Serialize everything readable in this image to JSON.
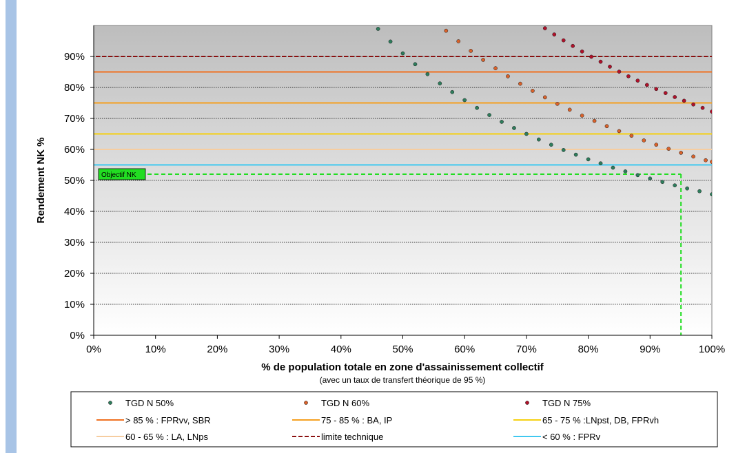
{
  "chart_data": {
    "type": "scatter",
    "xlabel": "% de population totale en zone d'assainissement collectif",
    "xlabel_note": "(avec un taux de transfert théorique de 95 %)",
    "ylabel": "Rendement NK %",
    "xlim": [
      0,
      100
    ],
    "ylim": [
      0,
      100
    ],
    "x_ticks": [
      "0%",
      "10%",
      "20%",
      "30%",
      "40%",
      "50%",
      "60%",
      "70%",
      "80%",
      "90%",
      "100%"
    ],
    "y_ticks": [
      "0%",
      "10%",
      "20%",
      "30%",
      "40%",
      "50%",
      "60%",
      "70%",
      "80%",
      "90%"
    ],
    "grid": "horizontal dotted",
    "background": "gradient grey (top) to white (bottom)",
    "series": [
      {
        "name": "TGD N 50%",
        "kind": "points",
        "marker": "dot",
        "color": "#2e7d5c",
        "x": [
          46,
          48,
          50,
          52,
          54,
          56,
          58,
          60,
          62,
          64,
          66,
          68,
          70,
          72,
          74,
          76,
          78,
          80,
          82,
          84,
          86,
          88,
          90,
          92,
          94,
          96,
          98,
          100
        ],
        "y": [
          98.9,
          94.8,
          91.0,
          87.5,
          84.3,
          81.3,
          78.5,
          75.9,
          73.4,
          71.1,
          68.9,
          66.9,
          65.0,
          63.2,
          61.5,
          59.8,
          58.3,
          56.8,
          55.5,
          54.1,
          52.9,
          51.7,
          50.6,
          49.5,
          48.4,
          47.4,
          46.5,
          45.5
        ]
      },
      {
        "name": "TGD N 60%",
        "kind": "points",
        "marker": "dot",
        "color": "#d9622b",
        "x": [
          57,
          59,
          61,
          63,
          65,
          67,
          69,
          71,
          73,
          75,
          77,
          79,
          81,
          83,
          85,
          87,
          89,
          91,
          93,
          95,
          97,
          99,
          100
        ],
        "y": [
          98.3,
          94.9,
          91.8,
          88.9,
          86.2,
          83.6,
          81.2,
          78.9,
          76.8,
          74.7,
          72.8,
          70.9,
          69.2,
          67.5,
          65.9,
          64.4,
          62.9,
          61.5,
          60.2,
          58.9,
          57.7,
          56.5,
          56.0
        ]
      },
      {
        "name": "TGD N 75%",
        "kind": "points",
        "marker": "dot",
        "color": "#b0112a",
        "x": [
          73,
          74.5,
          76,
          77.5,
          79,
          80.5,
          82,
          83.5,
          85,
          86.5,
          88,
          89.5,
          91,
          92.5,
          94,
          95.5,
          97,
          98.5,
          100
        ],
        "y": [
          99.1,
          97.1,
          95.2,
          93.4,
          91.6,
          89.9,
          88.3,
          86.7,
          85.1,
          83.6,
          82.2,
          80.8,
          79.5,
          78.2,
          76.9,
          75.7,
          74.5,
          73.4,
          72.2
        ]
      },
      {
        "name": "> 85 % : FPRvv, SBR",
        "kind": "hline",
        "y": 85,
        "color": "#f07020",
        "style": "solid"
      },
      {
        "name": "75 - 85 % : BA, IP",
        "kind": "hline",
        "y": 75,
        "color": "#f5a020",
        "style": "solid"
      },
      {
        "name": "65 - 75 % :LNpst, DB, FPRvh",
        "kind": "hline",
        "y": 65,
        "color": "#f5d010",
        "style": "solid"
      },
      {
        "name": "60 - 65 % : LA, LNps",
        "kind": "hline",
        "y": 60,
        "color": "#f6cda0",
        "style": "solid"
      },
      {
        "name": "limite technique",
        "kind": "hline",
        "y": 90,
        "color": "#8b1010",
        "style": "dashed"
      },
      {
        "name": "< 60 % : FPRv",
        "kind": "hline",
        "y": 55,
        "color": "#40c8f0",
        "style": "solid"
      }
    ],
    "annotations": [
      {
        "text": "Objectif NK",
        "x": 95,
        "y": 52,
        "color": "#22dd22",
        "style": "dashed crosshair to axes"
      }
    ],
    "legend": {
      "placement": "bottom",
      "rows": [
        [
          "TGD N 50%",
          "TGD N 60%",
          "TGD N 75%"
        ],
        [
          "> 85 % : FPRvv, SBR",
          "75 - 85 % : BA, IP",
          "65 - 75 % :LNpst, DB, FPRvh"
        ],
        [
          "60 - 65 % : LA, LNps",
          "limite technique",
          "< 60 % : FPRv"
        ]
      ]
    }
  }
}
